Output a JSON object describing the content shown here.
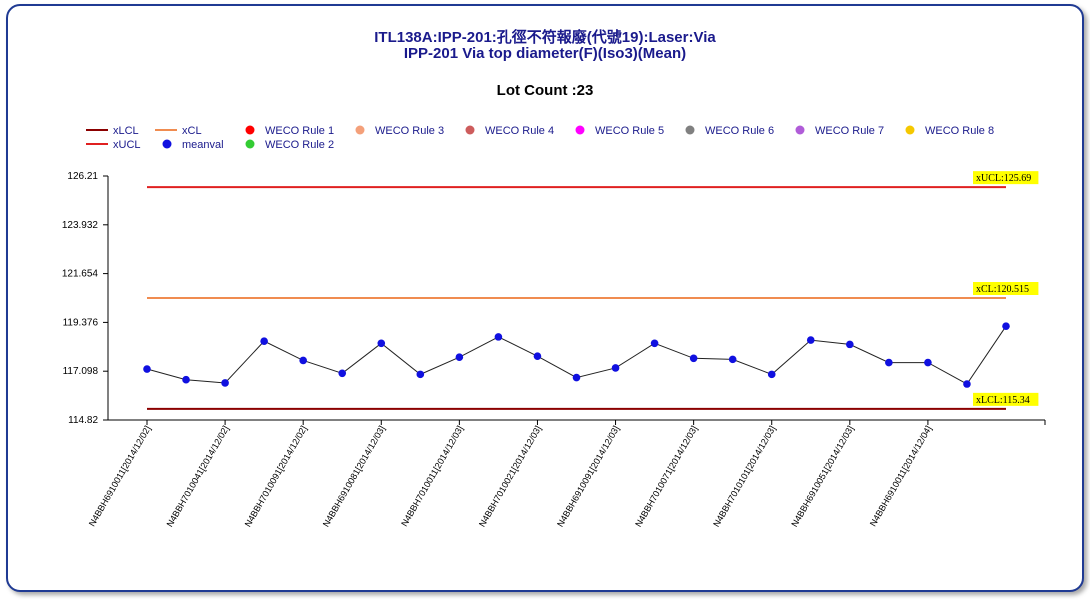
{
  "chart_data": {
    "type": "line",
    "title": "ITL138A:IPP-201:孔徑不符報廢(代號19):Laser:Via",
    "subtitle": "IPP-201 Via top diameter(F)(Iso3)(Mean)",
    "lot_count_label": "Lot Count :23",
    "ylim": [
      114.82,
      126.21
    ],
    "y_ticks": [
      "126.21",
      "123.932",
      "121.654",
      "119.376",
      "117.098",
      "114.82"
    ],
    "y_tick_values": [
      126.21,
      123.932,
      121.654,
      119.376,
      117.098,
      114.82
    ],
    "x_tick_labels": [
      "N4BBH6910011[2014/12/02]",
      "N4BBH7010041[2014/12/02]",
      "N4BBH7010091[2014/12/02]",
      "N4BBH6910081[2014/12/03]",
      "N4BBH7010011[2014/12/03]",
      "N4BBH7010021[2014/12/03]",
      "N4BBH6910091[2014/12/03]",
      "N4BBH7010071[2014/12/03]",
      "N4BBH7010101[2014/12/03]",
      "N4BBH6910051[2014/12/03]",
      "N4BBH6910011[2014/12/04]"
    ],
    "x_tick_every": 2,
    "control_limits": {
      "xUCL": {
        "value": 125.69,
        "label": "xUCL:125.69",
        "color": "#e02020"
      },
      "xCL": {
        "value": 120.515,
        "label": "xCL:120.515",
        "color": "#f08c50"
      },
      "xLCL": {
        "value": 115.34,
        "label": "xLCL:115.34",
        "color": "#8b0000"
      }
    },
    "series": [
      {
        "name": "meanval",
        "color": "#1010e0",
        "values": [
          117.2,
          116.7,
          116.55,
          118.5,
          117.6,
          117.0,
          118.4,
          116.95,
          117.75,
          118.7,
          117.8,
          116.8,
          117.25,
          118.4,
          117.7,
          117.65,
          116.95,
          118.55,
          118.35,
          117.5,
          117.5,
          116.5,
          119.2
        ]
      }
    ],
    "legend": [
      {
        "name": "xLCL",
        "kind": "line",
        "color": "#8b0000"
      },
      {
        "name": "xUCL",
        "kind": "line",
        "color": "#e02020"
      },
      {
        "name": "xCL",
        "kind": "line",
        "color": "#f08c50"
      },
      {
        "name": "meanval",
        "kind": "dot",
        "color": "#1010e0"
      },
      {
        "name": "WECO Rule 1",
        "kind": "dot",
        "color": "#ff0000"
      },
      {
        "name": "WECO Rule 2",
        "kind": "dot",
        "color": "#33cc33"
      },
      {
        "name": "WECO Rule 3",
        "kind": "dot",
        "color": "#f4a07a"
      },
      {
        "name": "WECO Rule 4",
        "kind": "dot",
        "color": "#cd5c5c"
      },
      {
        "name": "WECO Rule 5",
        "kind": "dot",
        "color": "#ff00ff"
      },
      {
        "name": "WECO Rule 6",
        "kind": "dot",
        "color": "#808080"
      },
      {
        "name": "WECO Rule 7",
        "kind": "dot",
        "color": "#b05cd8"
      },
      {
        "name": "WECO Rule 8",
        "kind": "dot",
        "color": "#f5c800"
      }
    ],
    "legend_placement": "top",
    "grid": false
  }
}
